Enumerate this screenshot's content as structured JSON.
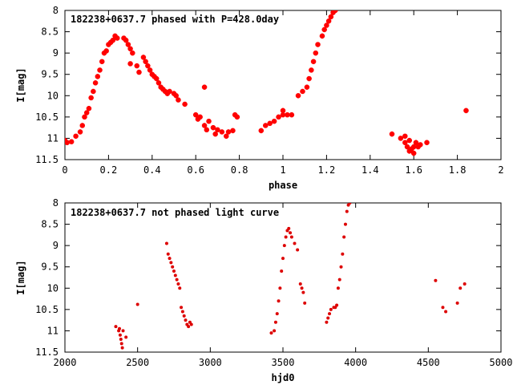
{
  "chart_data": [
    {
      "type": "scatter",
      "title": "182238+0637.7 phased with P=428.0day",
      "xlabel": "phase",
      "ylabel": "I[mag]",
      "xlim": [
        0,
        2
      ],
      "ylim": [
        11.5,
        8
      ],
      "y_inverted": true,
      "x_ticks": [
        "0",
        "0.2",
        "0.4",
        "0.6",
        "0.8",
        "1",
        "1.2",
        "1.4",
        "1.6",
        "1.8",
        "2"
      ],
      "y_ticks": [
        "8",
        "8.5",
        "9",
        "9.5",
        "10",
        "10.5",
        "11",
        "11.5"
      ],
      "marker_color": "#ff0000",
      "series": [
        {
          "points": [
            [
              0.0,
              11.05
            ],
            [
              0.01,
              11.1
            ],
            [
              0.03,
              11.08
            ],
            [
              0.05,
              10.95
            ],
            [
              0.07,
              10.85
            ],
            [
              0.08,
              10.7
            ],
            [
              0.09,
              10.5
            ],
            [
              0.1,
              10.4
            ],
            [
              0.11,
              10.3
            ],
            [
              0.12,
              10.05
            ],
            [
              0.13,
              9.9
            ],
            [
              0.14,
              9.7
            ],
            [
              0.15,
              9.55
            ],
            [
              0.16,
              9.4
            ],
            [
              0.17,
              9.2
            ],
            [
              0.18,
              9.0
            ],
            [
              0.19,
              8.95
            ],
            [
              0.2,
              8.8
            ],
            [
              0.21,
              8.75
            ],
            [
              0.22,
              8.7
            ],
            [
              0.23,
              8.6
            ],
            [
              0.24,
              8.65
            ],
            [
              0.27,
              8.65
            ],
            [
              0.28,
              8.7
            ],
            [
              0.29,
              8.8
            ],
            [
              0.3,
              8.9
            ],
            [
              0.31,
              9.0
            ],
            [
              0.3,
              9.25
            ],
            [
              0.33,
              9.3
            ],
            [
              0.34,
              9.45
            ],
            [
              0.36,
              9.1
            ],
            [
              0.37,
              9.2
            ],
            [
              0.38,
              9.3
            ],
            [
              0.39,
              9.4
            ],
            [
              0.4,
              9.5
            ],
            [
              0.41,
              9.55
            ],
            [
              0.42,
              9.6
            ],
            [
              0.43,
              9.7
            ],
            [
              0.44,
              9.8
            ],
            [
              0.45,
              9.85
            ],
            [
              0.46,
              9.9
            ],
            [
              0.47,
              9.95
            ],
            [
              0.48,
              9.9
            ],
            [
              0.5,
              9.95
            ],
            [
              0.51,
              10.0
            ],
            [
              0.52,
              10.1
            ],
            [
              0.55,
              10.2
            ],
            [
              0.6,
              10.45
            ],
            [
              0.61,
              10.55
            ],
            [
              0.62,
              10.5
            ],
            [
              0.64,
              10.7
            ],
            [
              0.65,
              10.8
            ],
            [
              0.66,
              10.6
            ],
            [
              0.68,
              10.75
            ],
            [
              0.69,
              10.9
            ],
            [
              0.7,
              10.8
            ],
            [
              0.72,
              10.85
            ],
            [
              0.74,
              10.95
            ],
            [
              0.75,
              10.85
            ],
            [
              0.77,
              10.82
            ],
            [
              0.78,
              10.45
            ],
            [
              0.79,
              10.5
            ],
            [
              0.64,
              9.8
            ],
            [
              0.9,
              10.82
            ],
            [
              0.92,
              10.7
            ],
            [
              0.94,
              10.65
            ],
            [
              0.96,
              10.6
            ],
            [
              0.98,
              10.5
            ],
            [
              1.0,
              10.45
            ],
            [
              1.0,
              10.35
            ],
            [
              1.02,
              10.45
            ],
            [
              1.04,
              10.45
            ],
            [
              1.07,
              10.0
            ],
            [
              1.09,
              9.9
            ],
            [
              1.11,
              9.8
            ],
            [
              1.12,
              9.6
            ],
            [
              1.13,
              9.4
            ],
            [
              1.14,
              9.2
            ],
            [
              1.15,
              9.0
            ],
            [
              1.16,
              8.8
            ],
            [
              1.18,
              8.6
            ],
            [
              1.19,
              8.45
            ],
            [
              1.2,
              8.35
            ],
            [
              1.21,
              8.25
            ],
            [
              1.22,
              8.15
            ],
            [
              1.23,
              8.05
            ],
            [
              1.24,
              8.0
            ],
            [
              1.5,
              10.9
            ],
            [
              1.54,
              11.0
            ],
            [
              1.56,
              11.1
            ],
            [
              1.57,
              11.2
            ],
            [
              1.58,
              11.3
            ],
            [
              1.59,
              11.25
            ],
            [
              1.6,
              11.2
            ],
            [
              1.61,
              11.1
            ],
            [
              1.62,
              11.2
            ],
            [
              1.63,
              11.15
            ],
            [
              1.56,
              10.95
            ],
            [
              1.58,
              11.05
            ],
            [
              1.6,
              11.35
            ],
            [
              1.66,
              11.1
            ],
            [
              1.84,
              10.35
            ]
          ]
        }
      ]
    },
    {
      "type": "scatter",
      "title": "182238+0637.7 not phased light curve",
      "xlabel": "hjd0",
      "ylabel": "I[mag]",
      "xlim": [
        2000,
        5000
      ],
      "ylim": [
        11.5,
        8
      ],
      "y_inverted": true,
      "x_ticks": [
        "2000",
        "2500",
        "3000",
        "3500",
        "4000",
        "4500",
        "5000"
      ],
      "y_ticks": [
        "8",
        "8.5",
        "9",
        "9.5",
        "10",
        "10.5",
        "11",
        "11.5"
      ],
      "marker_color": "#dd0000",
      "series": [
        {
          "points": [
            [
              2350,
              10.9
            ],
            [
              2370,
              11.0
            ],
            [
              2380,
              11.1
            ],
            [
              2385,
              11.2
            ],
            [
              2390,
              11.3
            ],
            [
              2395,
              11.4
            ],
            [
              2375,
              10.95
            ],
            [
              2400,
              11.0
            ],
            [
              2420,
              11.15
            ],
            [
              2500,
              10.38
            ],
            [
              2700,
              8.95
            ],
            [
              2710,
              9.2
            ],
            [
              2720,
              9.3
            ],
            [
              2730,
              9.4
            ],
            [
              2740,
              9.5
            ],
            [
              2750,
              9.6
            ],
            [
              2760,
              9.7
            ],
            [
              2770,
              9.8
            ],
            [
              2780,
              9.9
            ],
            [
              2790,
              10.0
            ],
            [
              2800,
              10.45
            ],
            [
              2810,
              10.55
            ],
            [
              2820,
              10.65
            ],
            [
              2830,
              10.75
            ],
            [
              2840,
              10.85
            ],
            [
              2850,
              10.9
            ],
            [
              2860,
              10.8
            ],
            [
              2870,
              10.85
            ],
            [
              3420,
              11.05
            ],
            [
              3440,
              11.0
            ],
            [
              3450,
              10.8
            ],
            [
              3460,
              10.6
            ],
            [
              3470,
              10.3
            ],
            [
              3480,
              10.0
            ],
            [
              3490,
              9.6
            ],
            [
              3500,
              9.3
            ],
            [
              3510,
              9.0
            ],
            [
              3520,
              8.8
            ],
            [
              3530,
              8.65
            ],
            [
              3540,
              8.6
            ],
            [
              3550,
              8.7
            ],
            [
              3560,
              8.8
            ],
            [
              3580,
              8.95
            ],
            [
              3600,
              9.1
            ],
            [
              3620,
              9.9
            ],
            [
              3630,
              10.0
            ],
            [
              3640,
              10.1
            ],
            [
              3650,
              10.35
            ],
            [
              3800,
              10.8
            ],
            [
              3810,
              10.7
            ],
            [
              3820,
              10.6
            ],
            [
              3830,
              10.5
            ],
            [
              3850,
              10.45
            ],
            [
              3860,
              10.45
            ],
            [
              3870,
              10.4
            ],
            [
              3880,
              10.0
            ],
            [
              3890,
              9.8
            ],
            [
              3900,
              9.5
            ],
            [
              3910,
              9.2
            ],
            [
              3920,
              8.8
            ],
            [
              3930,
              8.5
            ],
            [
              3940,
              8.2
            ],
            [
              3950,
              8.05
            ],
            [
              3960,
              8.0
            ],
            [
              4550,
              9.82
            ],
            [
              4600,
              10.45
            ],
            [
              4620,
              10.55
            ],
            [
              4700,
              10.35
            ],
            [
              4720,
              10.0
            ],
            [
              4750,
              9.9
            ]
          ]
        }
      ]
    }
  ]
}
